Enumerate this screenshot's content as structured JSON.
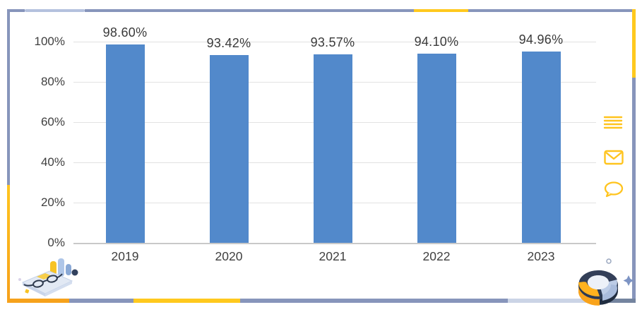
{
  "chart_data": {
    "type": "bar",
    "title": "",
    "categories": [
      "2019",
      "2020",
      "2021",
      "2022",
      "2023"
    ],
    "values": [
      98.6,
      93.42,
      93.57,
      94.1,
      94.96
    ],
    "data_labels": [
      "98.60%",
      "93.42%",
      "93.57%",
      "94.10%",
      "94.96%"
    ],
    "y_ticks": [
      "100%",
      "80%",
      "60%",
      "40%",
      "20%",
      "0%"
    ],
    "ylim": [
      0,
      100
    ],
    "grid": true,
    "legend": false,
    "bar_color": "#5289CB"
  },
  "side_icons": [
    {
      "name": "menu-icon"
    },
    {
      "name": "mail-icon"
    },
    {
      "name": "chat-icon"
    }
  ],
  "colors": {
    "bar_blue": "#5289CB",
    "accent_yellow": "#FFC91E",
    "accent_orange": "#F6A21C",
    "frame_slate": "#8795BB",
    "gridline": "#E2E2E2",
    "text": "#3F3F3F"
  },
  "decorations": {
    "bottom_left": "isometric desk with glasses and mini bar chart",
    "bottom_right": "3d donut chart"
  }
}
